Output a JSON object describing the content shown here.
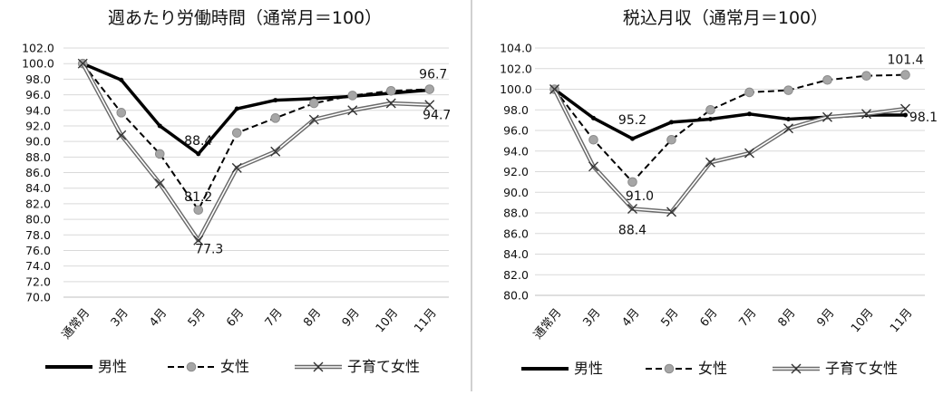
{
  "chart_data": [
    {
      "type": "line",
      "title": "週あたり労働時間（通常月＝100）",
      "categories": [
        "通常月",
        "3月",
        "4月",
        "5月",
        "6月",
        "7月",
        "8月",
        "9月",
        "10月",
        "11月"
      ],
      "ylim": [
        70,
        102
      ],
      "ytick_step": 2,
      "ytick_labels": [
        "70.0",
        "72.0",
        "74.0",
        "76.0",
        "78.0",
        "80.0",
        "82.0",
        "84.0",
        "86.0",
        "88.0",
        "90.0",
        "92.0",
        "94.0",
        "96.0",
        "98.0",
        "100.0",
        "102.0"
      ],
      "grid": true,
      "legend": "bottom",
      "series": [
        {
          "name": "男性",
          "style": "solid",
          "color": "#000000",
          "values": [
            100,
            97.9,
            92.0,
            88.4,
            94.2,
            95.3,
            95.5,
            95.8,
            96.2,
            96.6
          ]
        },
        {
          "name": "女性",
          "style": "dashed",
          "color": "#000000",
          "marker": "circle",
          "values": [
            100,
            93.7,
            88.4,
            81.2,
            91.1,
            93.0,
            94.9,
            95.9,
            96.5,
            96.7
          ]
        },
        {
          "name": "子育て女性",
          "style": "double",
          "color": "#666666",
          "marker": "x",
          "values": [
            100,
            90.8,
            84.6,
            77.3,
            86.6,
            88.7,
            92.8,
            94.0,
            94.9,
            94.7
          ]
        }
      ],
      "annotations": [
        {
          "text": "88.4",
          "series": 0,
          "index": 3
        },
        {
          "text": "81.2",
          "series": 1,
          "index": 3
        },
        {
          "text": "77.3",
          "series": 2,
          "index": 3
        },
        {
          "text": "96.7",
          "series": 1,
          "index": 9
        },
        {
          "text": "94.7",
          "series": 2,
          "index": 9
        }
      ]
    },
    {
      "type": "line",
      "title": "税込月収（通常月＝100）",
      "categories": [
        "通常月",
        "3月",
        "4月",
        "5月",
        "6月",
        "7月",
        "8月",
        "9月",
        "10月",
        "11月"
      ],
      "ylim": [
        80,
        104
      ],
      "ytick_step": 2,
      "ytick_labels": [
        "80.0",
        "82.0",
        "84.0",
        "86.0",
        "88.0",
        "90.0",
        "92.0",
        "94.0",
        "96.0",
        "98.0",
        "100.0",
        "102.0",
        "104.0"
      ],
      "grid": true,
      "legend": "bottom",
      "series": [
        {
          "name": "男性",
          "style": "solid",
          "color": "#000000",
          "values": [
            100,
            97.2,
            95.2,
            96.8,
            97.1,
            97.6,
            97.1,
            97.3,
            97.5,
            97.5
          ]
        },
        {
          "name": "女性",
          "style": "dashed",
          "color": "#000000",
          "marker": "circle",
          "values": [
            100,
            95.1,
            91.0,
            95.1,
            98.0,
            99.7,
            99.9,
            100.9,
            101.3,
            101.4
          ]
        },
        {
          "name": "子育て女性",
          "style": "double",
          "color": "#666666",
          "marker": "x",
          "values": [
            100,
            92.5,
            88.4,
            88.1,
            92.9,
            93.8,
            96.2,
            97.3,
            97.6,
            98.1
          ]
        }
      ],
      "annotations": [
        {
          "text": "95.2",
          "series": 0,
          "index": 2
        },
        {
          "text": "91.0",
          "series": 1,
          "index": 2
        },
        {
          "text": "88.4",
          "series": 2,
          "index": 2
        },
        {
          "text": "101.4",
          "series": 1,
          "index": 9
        },
        {
          "text": "98.1",
          "series": 2,
          "index": 9
        }
      ]
    }
  ]
}
